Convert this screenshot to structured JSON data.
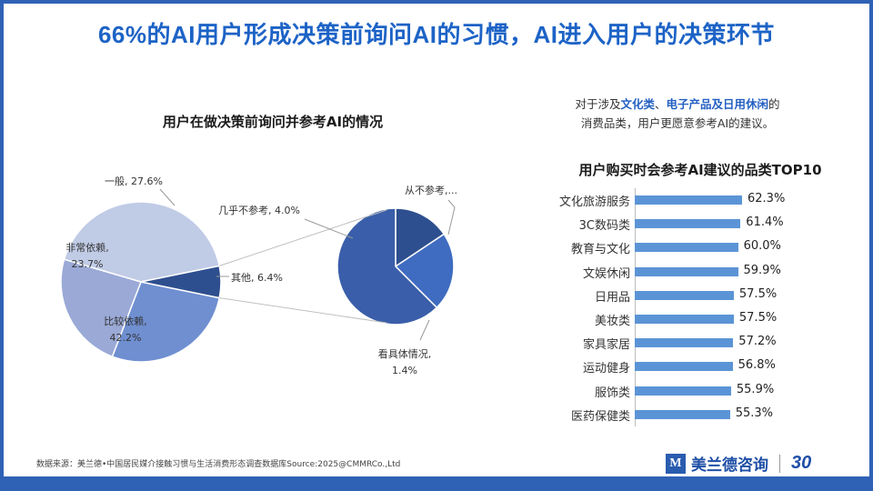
{
  "title": "66%的AI用户形成决策前询问AI的习惯，AI进入用户的决策环节",
  "left_chart_title": "用户在做决策前询问并参考AI的情况",
  "note": {
    "pre": "对于涉及",
    "hl1": "文化类",
    "sep": "、",
    "hl2": "电子产品及日用休闲",
    "post": "的",
    "line2": "消费品类，用户更愿意参考AI的建议。"
  },
  "bar_title": "用户购买时会参考AI建议的品类TOP10",
  "source": "数据来源：美兰德•中国居民媒介接触习惯与生活消费形态调查数据库Source:2025@CMMRCo.,Ltd",
  "brand": {
    "mark": "M",
    "name": "美兰德咨询",
    "anniv": "30"
  },
  "colors": {
    "slice_general": "#6f8fd1",
    "slice_very": "#9aa9d6",
    "slice_fairly": "#c0cbe6",
    "slice_other": "#2e4f8f",
    "sub_main": "#3a5ea9",
    "sub_never": "#2e4f8f",
    "sub_detail": "#3f6cc0",
    "bar": "#5b94d6",
    "accent": "#1d63c6"
  },
  "chart_data": [
    {
      "type": "pie",
      "title": "用户在做决策前询问并参考AI的情况",
      "slices": [
        {
          "name": "一般",
          "value": 27.6,
          "label": "一般, 27.6%"
        },
        {
          "name": "非常依赖",
          "value": 23.7,
          "label1": "非常依赖,",
          "label2": "23.7%"
        },
        {
          "name": "比较依赖",
          "value": 42.2,
          "label1": "比较依赖,",
          "label2": "42.2%"
        },
        {
          "name": "其他",
          "value": 6.4,
          "label": "其他, 6.4%"
        }
      ],
      "breakdown_of": "其他",
      "sub_slices": [
        {
          "name": "几乎不参考",
          "value": 4.0,
          "label": "几乎不参考, 4.0%"
        },
        {
          "name": "从不参考",
          "value": 1.0,
          "label": "从不参考,..."
        },
        {
          "name": "看具体情况",
          "value": 1.4,
          "label1": "看具体情况,",
          "label2": "1.4%"
        }
      ]
    },
    {
      "type": "bar",
      "orientation": "horizontal",
      "title": "用户购买时会参考AI建议的品类TOP10",
      "categories": [
        "文化旅游服务",
        "3C数码类",
        "教育与文化",
        "文娱休闲",
        "日用品",
        "美妆类",
        "家具家居",
        "运动健身",
        "服饰类",
        "医药保健类"
      ],
      "values": [
        62.3,
        61.4,
        60.0,
        59.9,
        57.5,
        57.5,
        57.2,
        56.8,
        55.9,
        55.3
      ],
      "labels": [
        "62.3%",
        "61.4%",
        "60.0%",
        "59.9%",
        "57.5%",
        "57.5%",
        "57.2%",
        "56.8%",
        "55.9%",
        "55.3%"
      ]
    }
  ]
}
